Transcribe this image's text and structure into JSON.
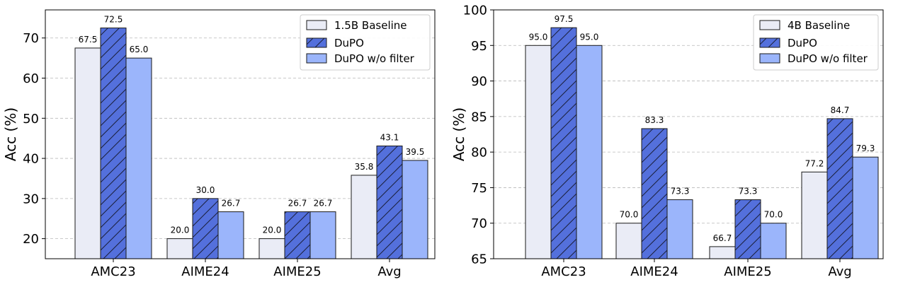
{
  "chart_data": [
    {
      "type": "bar",
      "ylabel": "Acc (%)",
      "ylim": [
        15,
        77
      ],
      "yticks": [
        20,
        30,
        40,
        50,
        60,
        70
      ],
      "categories": [
        "AMC23",
        "AIME24",
        "AIME25",
        "Avg"
      ],
      "grid": "horizontal dashed",
      "legend": "top-right",
      "series": [
        {
          "name": "1.5B Baseline",
          "values": [
            67.5,
            20.0,
            20.0,
            35.8
          ],
          "labels": [
            "67.5",
            "20.0",
            "20.0",
            "35.8"
          ],
          "color": "#eaecf6",
          "hatch": false
        },
        {
          "name": "DuPO",
          "values": [
            72.5,
            30.0,
            26.7,
            43.1
          ],
          "labels": [
            "72.5",
            "30.0",
            "26.7",
            "43.1"
          ],
          "color": "#5470dc",
          "hatch": true
        },
        {
          "name": "DuPO w/o filter",
          "values": [
            65.0,
            26.7,
            26.7,
            39.5
          ],
          "labels": [
            "65.0",
            "26.7",
            "26.7",
            "39.5"
          ],
          "color": "#9bb5fb",
          "hatch": false
        }
      ]
    },
    {
      "type": "bar",
      "ylabel": "Acc (%)",
      "ylim": [
        65,
        100
      ],
      "yticks": [
        65,
        70,
        75,
        80,
        85,
        90,
        95,
        100
      ],
      "categories": [
        "AMC23",
        "AIME24",
        "AIME25",
        "Avg"
      ],
      "grid": "horizontal dashed",
      "legend": "top-right",
      "series": [
        {
          "name": "4B Baseline",
          "values": [
            95.0,
            70.0,
            66.7,
            77.2
          ],
          "labels": [
            "95.0",
            "70.0",
            "66.7",
            "77.2"
          ],
          "color": "#eaecf6",
          "hatch": false
        },
        {
          "name": "DuPO",
          "values": [
            97.5,
            83.3,
            73.3,
            84.7
          ],
          "labels": [
            "97.5",
            "83.3",
            "73.3",
            "84.7"
          ],
          "color": "#5470dc",
          "hatch": true
        },
        {
          "name": "DuPO w/o filter",
          "values": [
            95.0,
            73.3,
            70.0,
            79.3
          ],
          "labels": [
            "95.0",
            "73.3",
            "70.0",
            "79.3"
          ],
          "color": "#9bb5fb",
          "hatch": false
        }
      ]
    }
  ]
}
